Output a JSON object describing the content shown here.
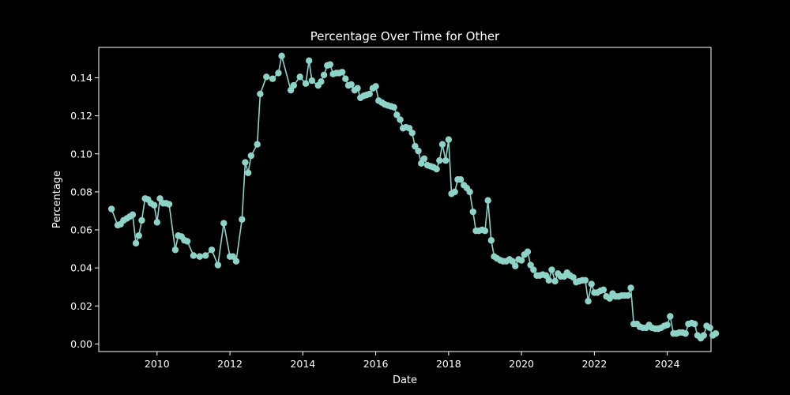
{
  "chart_data": {
    "type": "line",
    "title": "Percentage Over Time for Other",
    "xlabel": "Date",
    "ylabel": "Percentage",
    "xlim": [
      2008.4,
      2025.2
    ],
    "ylim": [
      -0.004,
      0.156
    ],
    "x_ticks": [
      2010,
      2012,
      2014,
      2016,
      2018,
      2020,
      2022,
      2024
    ],
    "x_tick_labels": [
      "2010",
      "2012",
      "2014",
      "2016",
      "2018",
      "2020",
      "2022",
      "2024"
    ],
    "y_ticks": [
      0.0,
      0.02,
      0.04,
      0.06,
      0.08,
      0.1,
      0.12,
      0.14
    ],
    "y_tick_labels": [
      "0.00",
      "0.02",
      "0.04",
      "0.06",
      "0.08",
      "0.10",
      "0.12",
      "0.14"
    ],
    "grid": false,
    "marker": "circle",
    "series": [
      {
        "color": "#8dd3c7",
        "points": [
          [
            2008.75,
            0.071
          ],
          [
            2008.92,
            0.0625
          ],
          [
            2009.0,
            0.063
          ],
          [
            2009.08,
            0.065
          ],
          [
            2009.17,
            0.066
          ],
          [
            2009.25,
            0.067
          ],
          [
            2009.33,
            0.068
          ],
          [
            2009.42,
            0.053
          ],
          [
            2009.5,
            0.057
          ],
          [
            2009.58,
            0.065
          ],
          [
            2009.67,
            0.0765
          ],
          [
            2009.75,
            0.076
          ],
          [
            2009.83,
            0.074
          ],
          [
            2009.92,
            0.073
          ],
          [
            2010.0,
            0.064
          ],
          [
            2010.08,
            0.0765
          ],
          [
            2010.17,
            0.074
          ],
          [
            2010.25,
            0.074
          ],
          [
            2010.33,
            0.0735
          ],
          [
            2010.5,
            0.0495
          ],
          [
            2010.58,
            0.057
          ],
          [
            2010.67,
            0.0565
          ],
          [
            2010.75,
            0.0545
          ],
          [
            2010.83,
            0.054
          ],
          [
            2011.0,
            0.0465
          ],
          [
            2011.17,
            0.046
          ],
          [
            2011.33,
            0.0465
          ],
          [
            2011.5,
            0.0495
          ],
          [
            2011.67,
            0.0415
          ],
          [
            2011.83,
            0.0635
          ],
          [
            2012.0,
            0.046
          ],
          [
            2012.08,
            0.046
          ],
          [
            2012.17,
            0.0435
          ],
          [
            2012.33,
            0.0655
          ],
          [
            2012.42,
            0.0955
          ],
          [
            2012.5,
            0.09
          ],
          [
            2012.58,
            0.099
          ],
          [
            2012.75,
            0.105
          ],
          [
            2012.83,
            0.1315
          ],
          [
            2013.0,
            0.1405
          ],
          [
            2013.17,
            0.1395
          ],
          [
            2013.33,
            0.1425
          ],
          [
            2013.42,
            0.1515
          ],
          [
            2013.67,
            0.1335
          ],
          [
            2013.75,
            0.136
          ],
          [
            2013.92,
            0.1405
          ],
          [
            2014.08,
            0.137
          ],
          [
            2014.17,
            0.149
          ],
          [
            2014.25,
            0.1385
          ],
          [
            2014.42,
            0.136
          ],
          [
            2014.5,
            0.138
          ],
          [
            2014.58,
            0.1415
          ],
          [
            2014.67,
            0.1465
          ],
          [
            2014.75,
            0.147
          ],
          [
            2014.83,
            0.142
          ],
          [
            2014.92,
            0.1425
          ],
          [
            2015.0,
            0.1425
          ],
          [
            2015.08,
            0.143
          ],
          [
            2015.17,
            0.1395
          ],
          [
            2015.25,
            0.136
          ],
          [
            2015.33,
            0.1365
          ],
          [
            2015.42,
            0.1335
          ],
          [
            2015.5,
            0.1345
          ],
          [
            2015.58,
            0.1295
          ],
          [
            2015.67,
            0.1305
          ],
          [
            2015.75,
            0.131
          ],
          [
            2015.83,
            0.1315
          ],
          [
            2015.92,
            0.1345
          ],
          [
            2016.0,
            0.1355
          ],
          [
            2016.08,
            0.128
          ],
          [
            2016.17,
            0.127
          ],
          [
            2016.25,
            0.126
          ],
          [
            2016.33,
            0.1255
          ],
          [
            2016.42,
            0.125
          ],
          [
            2016.5,
            0.1245
          ],
          [
            2016.58,
            0.1205
          ],
          [
            2016.67,
            0.118
          ],
          [
            2016.75,
            0.1135
          ],
          [
            2016.83,
            0.114
          ],
          [
            2016.92,
            0.1135
          ],
          [
            2017.0,
            0.111
          ],
          [
            2017.08,
            0.104
          ],
          [
            2017.17,
            0.1015
          ],
          [
            2017.25,
            0.095
          ],
          [
            2017.33,
            0.0975
          ],
          [
            2017.42,
            0.094
          ],
          [
            2017.5,
            0.0935
          ],
          [
            2017.58,
            0.093
          ],
          [
            2017.67,
            0.092
          ],
          [
            2017.75,
            0.0965
          ],
          [
            2017.83,
            0.105
          ],
          [
            2017.92,
            0.0965
          ],
          [
            2018.0,
            0.1075
          ],
          [
            2018.08,
            0.079
          ],
          [
            2018.17,
            0.08
          ],
          [
            2018.25,
            0.0865
          ],
          [
            2018.33,
            0.0865
          ],
          [
            2018.42,
            0.0835
          ],
          [
            2018.5,
            0.082
          ],
          [
            2018.58,
            0.08
          ],
          [
            2018.67,
            0.0695
          ],
          [
            2018.75,
            0.0595
          ],
          [
            2018.83,
            0.0595
          ],
          [
            2018.92,
            0.06
          ],
          [
            2019.0,
            0.0595
          ],
          [
            2019.08,
            0.0755
          ],
          [
            2019.17,
            0.0545
          ],
          [
            2019.25,
            0.046
          ],
          [
            2019.33,
            0.045
          ],
          [
            2019.42,
            0.044
          ],
          [
            2019.5,
            0.0435
          ],
          [
            2019.58,
            0.0435
          ],
          [
            2019.67,
            0.0445
          ],
          [
            2019.75,
            0.0435
          ],
          [
            2019.83,
            0.041
          ],
          [
            2019.92,
            0.0445
          ],
          [
            2020.0,
            0.044
          ],
          [
            2020.08,
            0.047
          ],
          [
            2020.17,
            0.0485
          ],
          [
            2020.25,
            0.0415
          ],
          [
            2020.33,
            0.039
          ],
          [
            2020.42,
            0.036
          ],
          [
            2020.5,
            0.036
          ],
          [
            2020.58,
            0.0365
          ],
          [
            2020.67,
            0.036
          ],
          [
            2020.75,
            0.0335
          ],
          [
            2020.83,
            0.039
          ],
          [
            2020.92,
            0.033
          ],
          [
            2021.0,
            0.037
          ],
          [
            2021.08,
            0.0355
          ],
          [
            2021.17,
            0.0355
          ],
          [
            2021.25,
            0.0375
          ],
          [
            2021.33,
            0.036
          ],
          [
            2021.42,
            0.035
          ],
          [
            2021.5,
            0.0325
          ],
          [
            2021.58,
            0.033
          ],
          [
            2021.67,
            0.0335
          ],
          [
            2021.75,
            0.0335
          ],
          [
            2021.83,
            0.0225
          ],
          [
            2021.92,
            0.0315
          ],
          [
            2022.0,
            0.027
          ],
          [
            2022.08,
            0.027
          ],
          [
            2022.17,
            0.028
          ],
          [
            2022.25,
            0.0285
          ],
          [
            2022.33,
            0.025
          ],
          [
            2022.42,
            0.024
          ],
          [
            2022.5,
            0.0265
          ],
          [
            2022.58,
            0.025
          ],
          [
            2022.67,
            0.025
          ],
          [
            2022.75,
            0.0255
          ],
          [
            2022.83,
            0.0255
          ],
          [
            2022.92,
            0.0255
          ],
          [
            2023.0,
            0.0295
          ],
          [
            2023.08,
            0.0105
          ],
          [
            2023.17,
            0.0105
          ],
          [
            2023.25,
            0.009
          ],
          [
            2023.33,
            0.0085
          ],
          [
            2023.42,
            0.0085
          ],
          [
            2023.5,
            0.01
          ],
          [
            2023.58,
            0.0085
          ],
          [
            2023.67,
            0.008
          ],
          [
            2023.75,
            0.008
          ],
          [
            2023.83,
            0.0085
          ],
          [
            2023.92,
            0.0095
          ],
          [
            2024.0,
            0.01
          ],
          [
            2024.08,
            0.0145
          ],
          [
            2024.17,
            0.0055
          ],
          [
            2024.25,
            0.0055
          ],
          [
            2024.33,
            0.006
          ],
          [
            2024.42,
            0.006
          ],
          [
            2024.5,
            0.0055
          ],
          [
            2024.58,
            0.0105
          ],
          [
            2024.67,
            0.011
          ],
          [
            2024.75,
            0.0105
          ],
          [
            2024.83,
            0.0045
          ],
          [
            2024.92,
            0.003
          ],
          [
            2025.0,
            0.0045
          ],
          [
            2025.08,
            0.0095
          ],
          [
            2025.17,
            0.0085
          ],
          [
            2025.25,
            0.0045
          ],
          [
            2025.33,
            0.0055
          ]
        ]
      }
    ]
  }
}
